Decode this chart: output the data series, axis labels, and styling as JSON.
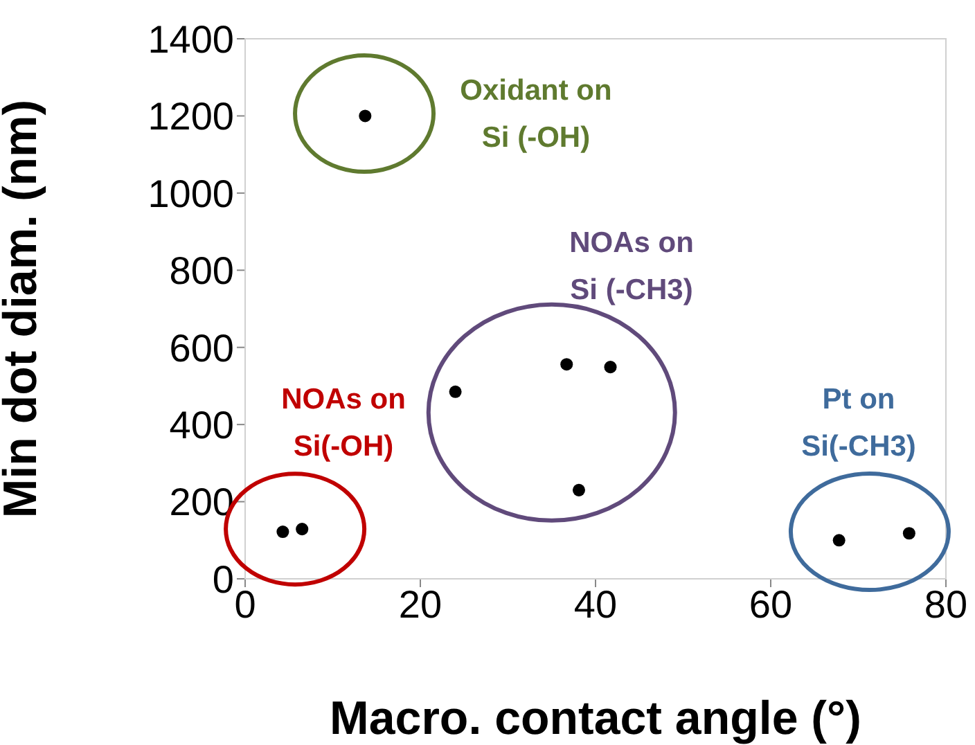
{
  "chart_data": {
    "type": "scatter",
    "xlabel": "Macro. contact angle (°)",
    "ylabel": "Min dot diam. (nm)",
    "series": [
      {
        "color": "#000000",
        "x": [
          4.3,
          6.5,
          13.7,
          24,
          36.7,
          41.7,
          38.1,
          67.8,
          75.8
        ],
        "values": [
          122,
          129,
          1200,
          485,
          556,
          549,
          230,
          100,
          118
        ]
      }
    ],
    "xlim": [
      0,
      80
    ],
    "xticks": [
      0,
      20,
      40,
      60,
      80
    ],
    "ylim": [
      0,
      1400
    ],
    "yticks": [
      0,
      200,
      400,
      600,
      800,
      1000,
      1200,
      1400
    ],
    "grid": false,
    "legend": false,
    "marker": "circle",
    "annotations": [
      "Oxidant on\nSi (-OH)",
      "NOAs on\nSi (-CH3)",
      "NOAs on\nSi(-OH)",
      "Pt on\nSi(-CH3)"
    ]
  }
}
